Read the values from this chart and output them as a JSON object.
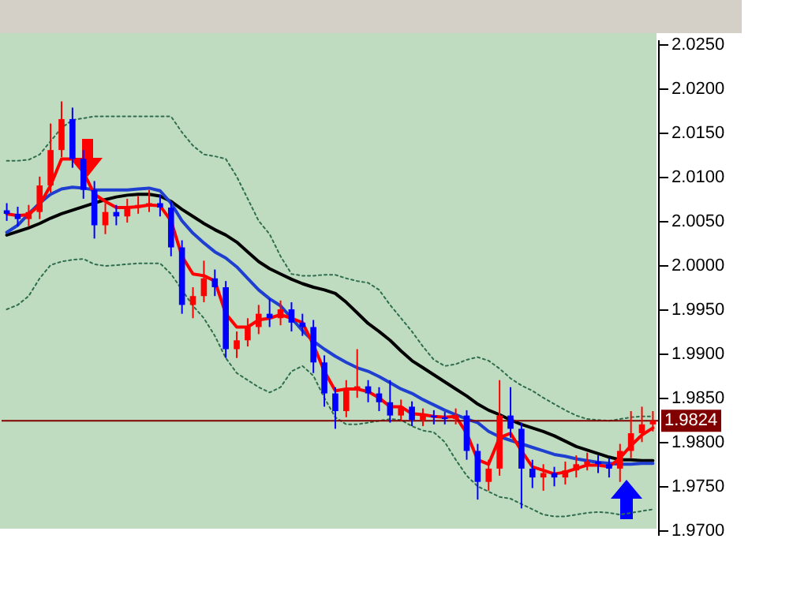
{
  "chart_data": {
    "type": "candlestick",
    "categories": [
      null,
      null,
      null,
      null,
      null,
      null,
      null,
      null,
      null,
      null,
      null,
      null,
      null,
      null,
      null,
      null,
      null,
      null,
      null,
      null,
      null,
      null,
      null,
      null,
      null,
      null,
      null,
      null,
      null,
      null,
      null,
      null,
      null,
      null,
      null,
      null,
      null,
      null,
      null,
      null,
      null,
      null,
      null,
      null,
      null,
      null,
      null,
      null,
      null,
      null,
      null,
      null,
      null,
      null,
      null,
      null,
      null,
      null,
      null,
      null
    ],
    "ohlc": [
      [
        2.0062,
        2.007,
        2.005,
        2.0058
      ],
      [
        2.0058,
        2.0066,
        2.0044,
        2.0052
      ],
      [
        2.0052,
        2.0068,
        2.0044,
        2.006
      ],
      [
        2.006,
        2.01,
        2.0052,
        2.009
      ],
      [
        2.009,
        2.016,
        2.0082,
        2.013
      ],
      [
        2.013,
        2.0185,
        2.0122,
        2.0165
      ],
      [
        2.0165,
        2.0178,
        2.011,
        2.012
      ],
      [
        2.012,
        2.013,
        2.0075,
        2.0085
      ],
      [
        2.0085,
        2.0095,
        2.003,
        2.0045
      ],
      [
        2.0045,
        2.007,
        2.0035,
        2.006
      ],
      [
        2.006,
        2.0068,
        2.0045,
        2.0055
      ],
      [
        2.0055,
        2.0075,
        2.0048,
        2.0065
      ],
      [
        2.0065,
        2.0078,
        2.0058,
        2.0068
      ],
      [
        2.0068,
        2.0085,
        2.006,
        2.007
      ],
      [
        2.007,
        2.008,
        2.0055,
        2.0065
      ],
      [
        2.0065,
        2.0072,
        2.001,
        2.002
      ],
      [
        2.002,
        2.0028,
        1.9945,
        1.9955
      ],
      [
        1.9955,
        1.9975,
        1.994,
        1.9965
      ],
      [
        1.9965,
        2.0005,
        1.9958,
        1.9985
      ],
      [
        1.9985,
        1.9995,
        1.9965,
        1.9975
      ],
      [
        1.9975,
        1.9982,
        1.9895,
        1.9905
      ],
      [
        1.9905,
        1.9925,
        1.9895,
        1.9915
      ],
      [
        1.9915,
        1.994,
        1.9908,
        1.993
      ],
      [
        1.993,
        1.9955,
        1.9922,
        1.9945
      ],
      [
        1.9945,
        1.9962,
        1.993,
        1.994
      ],
      [
        1.994,
        1.996,
        1.9932,
        1.995
      ],
      [
        1.995,
        1.9958,
        1.9925,
        1.9935
      ],
      [
        1.9935,
        1.9945,
        1.992,
        1.993
      ],
      [
        1.993,
        1.9938,
        1.9878,
        1.989
      ],
      [
        1.989,
        1.9898,
        1.984,
        1.9855
      ],
      [
        1.9855,
        1.9862,
        1.9815,
        1.9835
      ],
      [
        1.9835,
        1.987,
        1.9828,
        1.986
      ],
      [
        1.986,
        1.9905,
        1.985,
        1.9863
      ],
      [
        1.9863,
        1.987,
        1.9845,
        1.9855
      ],
      [
        1.9855,
        1.9862,
        1.9835,
        1.9845
      ],
      [
        1.9845,
        1.987,
        1.9822,
        1.983
      ],
      [
        1.983,
        1.9848,
        1.9824,
        1.984
      ],
      [
        1.984,
        1.9846,
        1.9818,
        1.9825
      ],
      [
        1.9825,
        1.9838,
        1.9818,
        1.983
      ],
      [
        1.983,
        1.9836,
        1.982,
        1.9828
      ],
      [
        1.9828,
        1.9834,
        1.982,
        1.9826
      ],
      [
        1.9826,
        1.9838,
        1.982,
        1.983
      ],
      [
        1.983,
        1.9836,
        1.978,
        1.979
      ],
      [
        1.979,
        1.9798,
        1.9735,
        1.9755
      ],
      [
        1.9755,
        1.978,
        1.9745,
        1.977
      ],
      [
        1.977,
        1.987,
        1.9762,
        1.983
      ],
      [
        1.983,
        1.9862,
        1.9805,
        1.9815
      ],
      [
        1.9815,
        1.9822,
        1.9725,
        1.977
      ],
      [
        1.977,
        1.978,
        1.9748,
        1.976
      ],
      [
        1.976,
        1.9775,
        1.9745,
        1.9765
      ],
      [
        1.9765,
        1.9772,
        1.975,
        1.976
      ],
      [
        1.976,
        1.9778,
        1.9752,
        1.9768
      ],
      [
        1.9768,
        1.9785,
        1.976,
        1.9775
      ],
      [
        1.9775,
        1.9788,
        1.9768,
        1.9778
      ],
      [
        1.9778,
        1.9785,
        1.9765,
        1.9775
      ],
      [
        1.9775,
        1.9782,
        1.976,
        1.977
      ],
      [
        1.977,
        1.9798,
        1.9755,
        1.979
      ],
      [
        1.979,
        1.9835,
        1.9782,
        1.981
      ],
      [
        1.981,
        1.984,
        1.98,
        1.982
      ],
      [
        1.982,
        1.9835,
        1.9812,
        1.9824
      ]
    ],
    "colors": [
      "#0000ff",
      "#0000ff",
      "#ff0000",
      "#ff0000",
      "#ff0000",
      "#ff0000",
      "#0000ff",
      "#0000ff",
      "#0000ff",
      "#ff0000",
      "#0000ff",
      "#ff0000",
      "#ff0000",
      "#ff0000",
      "#0000ff",
      "#0000ff",
      "#0000ff",
      "#ff0000",
      "#ff0000",
      "#0000ff",
      "#0000ff",
      "#ff0000",
      "#ff0000",
      "#ff0000",
      "#0000ff",
      "#ff0000",
      "#0000ff",
      "#0000ff",
      "#0000ff",
      "#0000ff",
      "#0000ff",
      "#ff0000",
      "#ff0000",
      "#0000ff",
      "#0000ff",
      "#0000ff",
      "#ff0000",
      "#0000ff",
      "#ff0000",
      "#0000ff",
      "#0000ff",
      "#ff0000",
      "#0000ff",
      "#0000ff",
      "#ff0000",
      "#ff0000",
      "#0000ff",
      "#0000ff",
      "#0000ff",
      "#ff0000",
      "#0000ff",
      "#ff0000",
      "#ff0000",
      "#ff0000",
      "#0000ff",
      "#0000ff",
      "#ff0000",
      "#ff0000",
      "#ff0000",
      "#ff0000"
    ],
    "series": [
      {
        "type": "line",
        "color": "#2e6e4e",
        "line_style": "dotted",
        "values": [
          2.0118,
          2.0118,
          2.0119,
          2.0125,
          2.014,
          2.0155,
          2.0164,
          2.0166,
          2.0168,
          2.0168,
          2.0168,
          2.0168,
          2.0168,
          2.0168,
          2.0168,
          2.0168,
          2.015,
          2.0135,
          2.0125,
          2.0123,
          2.012,
          2.01,
          2.0075,
          2.005,
          2.0035,
          2.001,
          1.999,
          1.9988,
          1.9988,
          1.9989,
          1.9989,
          1.9985,
          1.9982,
          1.998,
          1.9972,
          1.9955,
          1.994,
          1.9925,
          1.9908,
          1.9893,
          1.9886,
          1.9888,
          1.9893,
          1.9896,
          1.9892,
          1.9883,
          1.9872,
          1.9864,
          1.9858,
          1.985,
          1.9843,
          1.9836,
          1.983,
          1.9826,
          1.9825,
          1.9824,
          1.9826,
          1.9828,
          1.9829,
          1.9829
        ]
      },
      {
        "type": "line",
        "color": "#2e6e4e",
        "line_style": "dotted",
        "values": [
          1.995,
          1.9955,
          1.9965,
          1.9985,
          2.0,
          2.0004,
          2.0006,
          2.0007,
          2.0001,
          1.9999,
          2.0,
          2.0001,
          2.0002,
          2.0002,
          2.0002,
          1.999,
          1.9972,
          1.9954,
          1.994,
          1.992,
          1.9895,
          1.9878,
          1.987,
          1.9862,
          1.9856,
          1.9862,
          1.988,
          1.9886,
          1.9875,
          1.985,
          1.9828,
          1.982,
          1.982,
          1.9822,
          1.9824,
          1.9826,
          1.9825,
          1.9818,
          1.9813,
          1.9811,
          1.98,
          1.978,
          1.9762,
          1.975,
          1.9744,
          1.9738,
          1.9736,
          1.973,
          1.9724,
          1.9718,
          1.9716,
          1.9716,
          1.9718,
          1.972,
          1.9721,
          1.972,
          1.9718,
          1.972,
          1.9722,
          1.9724
        ]
      },
      {
        "type": "line",
        "color": "#000000",
        "values": [
          2.0034,
          2.0038,
          2.0042,
          2.0047,
          2.0053,
          2.0058,
          2.0062,
          2.0066,
          2.007,
          2.0074,
          2.0077,
          2.0079,
          2.008,
          2.008,
          2.0078,
          2.0072,
          2.0063,
          2.0055,
          2.0047,
          2.004,
          2.0034,
          2.0026,
          2.0015,
          2.0004,
          1.9996,
          1.999,
          1.9984,
          1.9979,
          1.9975,
          1.9972,
          1.9968,
          1.9958,
          1.9946,
          1.9934,
          1.9925,
          1.9915,
          1.9903,
          1.9892,
          1.9884,
          1.9876,
          1.9868,
          1.986,
          1.9852,
          1.9843,
          1.9836,
          1.9831,
          1.9825,
          1.982,
          1.9816,
          1.9812,
          1.9807,
          1.9801,
          1.9795,
          1.9791,
          1.9787,
          1.9783,
          1.978,
          1.978,
          1.9779,
          1.9779
        ]
      },
      {
        "type": "line",
        "color": "#1f3fd0",
        "values": [
          2.0037,
          2.0045,
          2.0058,
          2.007,
          2.008,
          2.0086,
          2.0088,
          2.0087,
          2.0085,
          2.0085,
          2.0085,
          2.0085,
          2.0086,
          2.0087,
          2.0084,
          2.007,
          2.005,
          2.0036,
          2.0025,
          2.0015,
          2.0008,
          1.9998,
          1.9985,
          1.9972,
          1.9962,
          1.9954,
          1.994,
          1.9926,
          1.9914,
          1.9905,
          1.9897,
          1.989,
          1.9884,
          1.988,
          1.9874,
          1.9867,
          1.986,
          1.9855,
          1.9848,
          1.9842,
          1.9836,
          1.9831,
          1.9826,
          1.9822,
          1.9812,
          1.9806,
          1.9802,
          1.9798,
          1.9794,
          1.979,
          1.9786,
          1.9784,
          1.9781,
          1.9779,
          1.9777,
          1.9776,
          1.9775,
          1.9775,
          1.9776,
          1.9776
        ]
      },
      {
        "type": "line",
        "color": "#ff0000",
        "values": [
          2.0058,
          2.0056,
          2.0057,
          2.0068,
          2.009,
          2.012,
          2.012,
          2.0105,
          2.008,
          2.0072,
          2.0065,
          2.0065,
          2.0066,
          2.0068,
          2.0067,
          2.005,
          2.001,
          1.999,
          1.9988,
          1.9982,
          1.9945,
          1.993,
          1.993,
          1.9938,
          1.994,
          1.9944,
          1.994,
          1.9935,
          1.991,
          1.988,
          1.9858,
          1.986,
          1.986,
          1.9857,
          1.985,
          1.984,
          1.984,
          1.9832,
          1.9831,
          1.9829,
          1.9828,
          1.9829,
          1.981,
          1.978,
          1.9775,
          1.9805,
          1.981,
          1.979,
          1.9772,
          1.9768,
          1.9764,
          1.9766,
          1.977,
          1.9774,
          1.9774,
          1.9772,
          1.9782,
          1.9796,
          1.9808,
          1.9816
        ]
      }
    ],
    "ylim": [
      1.9695,
      2.0255
    ],
    "yticks": [
      {
        "value": 1.97,
        "label": "1.9700"
      },
      {
        "value": 1.975,
        "label": "1.9750"
      },
      {
        "value": 1.98,
        "label": "1.9800"
      },
      {
        "value": 1.985,
        "label": "1.9850"
      },
      {
        "value": 1.99,
        "label": "1.9900"
      },
      {
        "value": 1.995,
        "label": "1.9950"
      },
      {
        "value": 2.0,
        "label": "2.0000"
      },
      {
        "value": 2.005,
        "label": "2.0050"
      },
      {
        "value": 2.01,
        "label": "2.0100"
      },
      {
        "value": 2.015,
        "label": "2.0150"
      },
      {
        "value": 2.02,
        "label": "2.0200"
      },
      {
        "value": 2.025,
        "label": "2.0250"
      }
    ],
    "ref_lines": [
      {
        "axis": "y",
        "value": 1.9824,
        "label": "1.9824",
        "color": "#800000"
      }
    ]
  }
}
